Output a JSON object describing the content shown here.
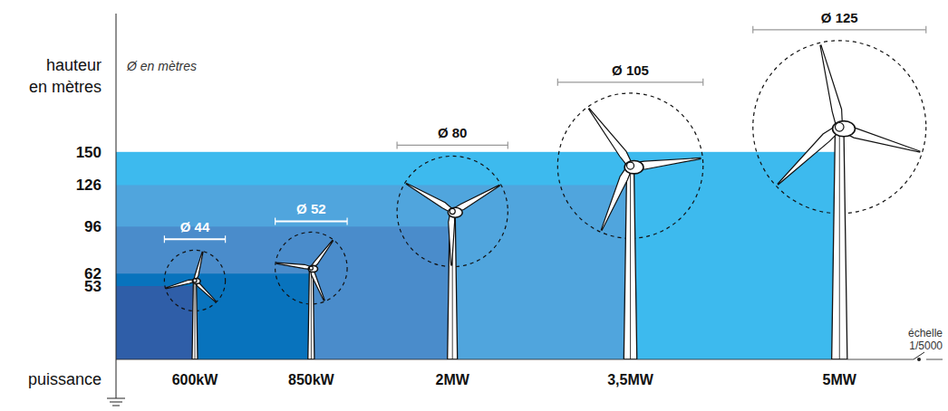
{
  "chart_data": {
    "type": "wind_turbines",
    "y_label": "hauteur en mètres",
    "diameter_label": "Ø en mètres",
    "x_label": "puissance",
    "scale_label": "échelle 1/5000",
    "categories": [
      "600kW",
      "850kW",
      "2MW",
      "3,5MW",
      "5MW"
    ],
    "heights": [
      53,
      62,
      96,
      126,
      150
    ],
    "colors": [
      "#2f5ea8",
      "#0873bd",
      "#4a8ccb",
      "#50a5dd",
      "#3dbaee"
    ],
    "hub_heights": [
      57,
      66,
      107,
      140,
      168
    ],
    "diameters": [
      44,
      52,
      80,
      105,
      125
    ],
    "diameter_labels": [
      "Ø 44",
      "Ø 52",
      "Ø 80",
      "Ø 105",
      "Ø 125"
    ],
    "ylim": [
      0,
      250
    ],
    "yticks": [
      53,
      62,
      96,
      126,
      150
    ]
  }
}
